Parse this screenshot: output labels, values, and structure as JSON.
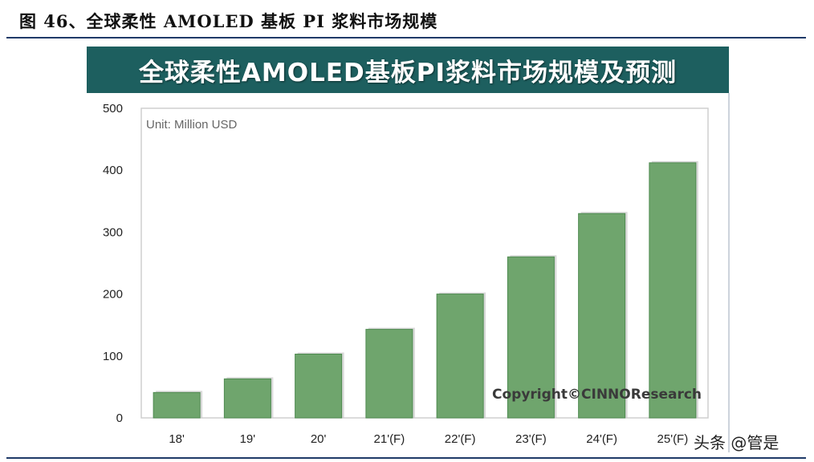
{
  "figure_title": "图 46、全球柔性 AMOLED 基板 PI 浆料市场规模",
  "banner_title": "全球柔性AMOLED基板PI浆料市场规模及预测",
  "watermark": "头条 @管是",
  "colors": {
    "banner": "#1d5f5f",
    "bar": "#6fa56d",
    "bar_edge": "#4f8a50",
    "rule": "#1f3a68"
  },
  "chart_data": {
    "type": "bar",
    "title": "全球柔性AMOLED基板PI浆料市场规模及预测",
    "unit": "Unit: Million USD",
    "categories": [
      "18'",
      "19'",
      "20'",
      "21'(F)",
      "22'(F)",
      "23'(F)",
      "24'(F)",
      "25'(F)"
    ],
    "values": [
      41,
      63,
      103,
      143,
      200,
      260,
      330,
      412
    ],
    "ylim": [
      0,
      500
    ],
    "yticks": [
      "0",
      "100",
      "200",
      "300",
      "400",
      "500"
    ],
    "xlabel": "",
    "ylabel": "",
    "grid": false,
    "annotation": "Copyright©CINNOResearch"
  }
}
